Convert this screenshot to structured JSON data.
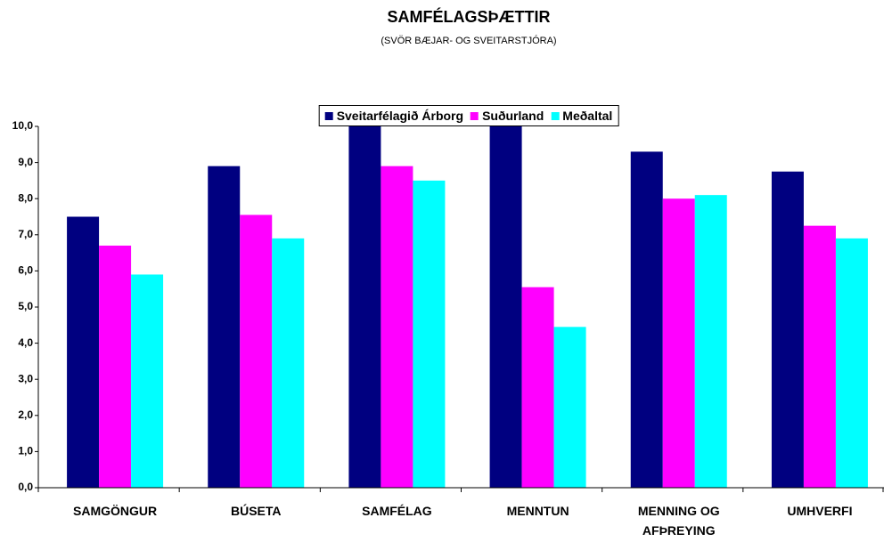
{
  "chart_data": {
    "type": "bar",
    "title": "SAMFÉLAGSÞÆTTIR",
    "subtitle": "(SVÖR BÆJAR- OG SVEITARSTJÓRA)",
    "categories": [
      "SAMGÖNGUR",
      "BÚSETA",
      "SAMFÉLAG",
      "MENNTUN",
      "MENNING OG AFÞREYING",
      "UMHVERFI"
    ],
    "series": [
      {
        "name": "Sveitarfélagið Árborg",
        "color": "#000080",
        "values": [
          7.5,
          8.9,
          10.0,
          10.0,
          9.3,
          8.75
        ]
      },
      {
        "name": "Suðurland",
        "color": "#ff00ff",
        "values": [
          6.7,
          7.55,
          8.9,
          5.55,
          8.0,
          7.25
        ]
      },
      {
        "name": "Meðaltal",
        "color": "#00ffff",
        "values": [
          5.9,
          6.9,
          8.5,
          4.45,
          8.1,
          6.9
        ]
      }
    ],
    "ylim": [
      0,
      10
    ],
    "yticks": [
      {
        "value": 0,
        "label": "0,0"
      },
      {
        "value": 1,
        "label": "1,0"
      },
      {
        "value": 2,
        "label": "2,0"
      },
      {
        "value": 3,
        "label": "3,0"
      },
      {
        "value": 4,
        "label": "4,0"
      },
      {
        "value": 5,
        "label": "5,0"
      },
      {
        "value": 6,
        "label": "6,0"
      },
      {
        "value": 7,
        "label": "7,0"
      },
      {
        "value": 8,
        "label": "8,0"
      },
      {
        "value": 9,
        "label": "9,0"
      },
      {
        "value": 10,
        "label": "10,0"
      }
    ],
    "grid": false,
    "legend": "top"
  }
}
